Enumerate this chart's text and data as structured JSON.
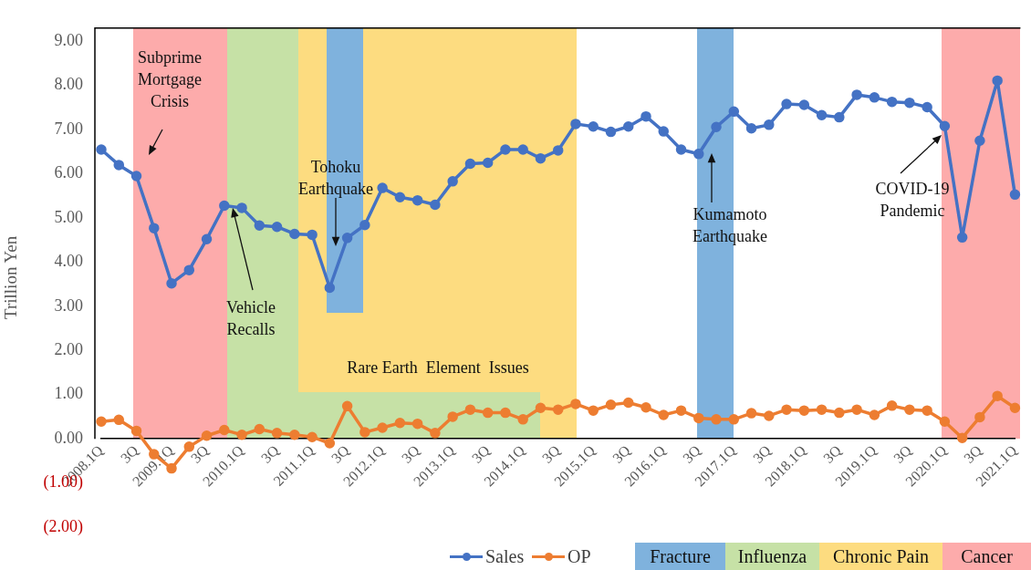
{
  "chart_data": {
    "type": "line",
    "ylabel": "Trillion Yen",
    "categories": [
      "2008.1Q",
      null,
      "3Q",
      null,
      "2009.1Q",
      null,
      "3Q",
      null,
      "2010.1Q",
      null,
      "3Q",
      null,
      "2011.1Q",
      null,
      "3Q",
      null,
      "2012.1Q",
      null,
      "3Q",
      null,
      "2013.1Q",
      null,
      "3Q",
      null,
      "2014.1Q",
      null,
      "3Q",
      null,
      "2015.1Q",
      null,
      "3Q",
      null,
      "2016.1Q",
      null,
      "3Q",
      null,
      "2017.1Q",
      null,
      "3Q",
      null,
      "2018.1Q",
      null,
      "3Q",
      null,
      "2019.1Q",
      null,
      "3Q",
      null,
      "2020.1Q",
      null,
      "3Q",
      null,
      "2021.1Q"
    ],
    "series": [
      {
        "name": "Sales",
        "color": "#4472c4",
        "values": [
          6.55,
          6.2,
          5.95,
          4.77,
          3.52,
          3.82,
          4.52,
          5.28,
          5.23,
          4.83,
          4.8,
          4.64,
          4.62,
          3.42,
          4.55,
          4.84,
          5.68,
          5.47,
          5.4,
          5.3,
          5.83,
          6.23,
          6.25,
          6.55,
          6.55,
          6.35,
          6.53,
          7.13,
          7.07,
          6.95,
          7.07,
          7.3,
          6.96,
          6.55,
          6.45,
          7.06,
          7.41,
          7.03,
          7.11,
          7.58,
          7.56,
          7.33,
          7.28,
          7.79,
          7.73,
          7.63,
          7.61,
          7.51,
          7.08,
          4.56,
          6.75,
          8.11,
          5.53
        ]
      },
      {
        "name": "OP",
        "color": "#ed7d31",
        "values": [
          0.39,
          0.43,
          0.18,
          -0.35,
          -0.67,
          -0.18,
          0.07,
          0.2,
          0.09,
          0.22,
          0.13,
          0.09,
          0.04,
          -0.1,
          0.74,
          0.15,
          0.25,
          0.36,
          0.34,
          0.13,
          0.5,
          0.66,
          0.59,
          0.59,
          0.44,
          0.7,
          0.66,
          0.79,
          0.64,
          0.77,
          0.82,
          0.71,
          0.54,
          0.64,
          0.47,
          0.44,
          0.44,
          0.58,
          0.52,
          0.66,
          0.64,
          0.66,
          0.59,
          0.66,
          0.54,
          0.75,
          0.66,
          0.64,
          0.39,
          0.02,
          0.49,
          0.97,
          0.7
        ]
      }
    ],
    "ylim": [
      -2,
      9.3
    ],
    "yticks": [
      {
        "value": -2,
        "label": "(2.00)"
      },
      {
        "value": -1,
        "label": "(1.00)"
      },
      {
        "value": 0,
        "label": "0.00"
      },
      {
        "value": 1,
        "label": "1.00"
      },
      {
        "value": 2,
        "label": "2.00"
      },
      {
        "value": 3,
        "label": "3.00"
      },
      {
        "value": 4,
        "label": "4.00"
      },
      {
        "value": 5,
        "label": "5.00"
      },
      {
        "value": 6,
        "label": "6.00"
      },
      {
        "value": 7,
        "label": "7.00"
      },
      {
        "value": 8,
        "label": "8.00"
      },
      {
        "value": 9,
        "label": "9.00"
      }
    ],
    "annotations": [
      "Subprime\nMortgage\nCrisis",
      "Vehicle\nRecalls",
      "Tohoku\nEarthquake",
      "Kumamoto\nEarthquake",
      "COVID-19\nPandemic",
      "Rare Earth  Element  Issues",
      "Fracture",
      "Influenza",
      "Chronic Pain",
      "Cancer"
    ],
    "marker": "circle",
    "line_style": "solid",
    "legend": "bottom",
    "grid": false
  }
}
